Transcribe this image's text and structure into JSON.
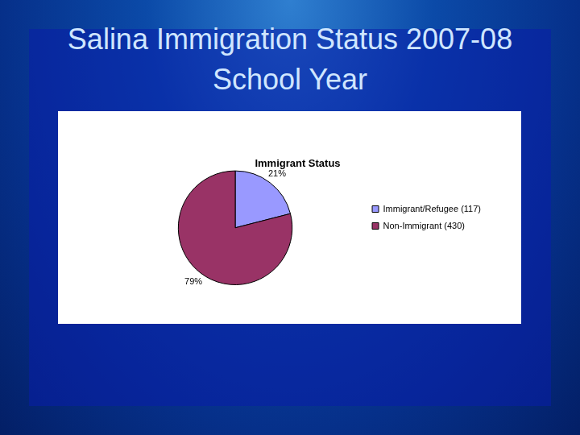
{
  "header": {
    "title": "Salina Immigration Status 2007-08 School Year"
  },
  "chart_data": {
    "type": "pie",
    "title": "Immigrant Status",
    "categories": [
      "Immigrant/Refugee (117)",
      "Non-Immigrant (430)"
    ],
    "values": [
      21,
      79
    ],
    "value_labels": [
      "21%",
      "79%"
    ],
    "colors": [
      "#9999ff",
      "#993366"
    ],
    "data_labels": true,
    "legend": "right"
  }
}
